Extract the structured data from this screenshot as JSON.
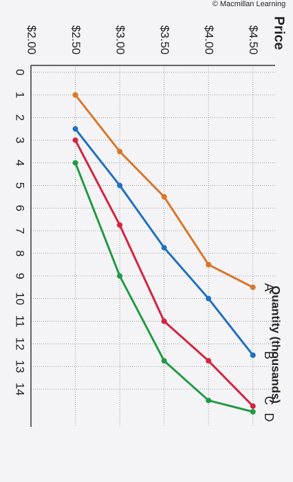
{
  "chart_data": {
    "type": "line",
    "credit": "© Macmillan Learning",
    "y_label": "Price",
    "x_label": "Quantity (thousands)",
    "ylim": [
      2,
      4.75
    ],
    "yticks": [
      {
        "value": 2,
        "label": "$2.00"
      },
      {
        "value": 2.5,
        "label": "$2.50"
      },
      {
        "value": 3,
        "label": "$3.00"
      },
      {
        "value": 3.5,
        "label": "$3.50"
      },
      {
        "value": 4,
        "label": "$4.00"
      },
      {
        "value": 4.5,
        "label": "$4.50"
      }
    ],
    "xlim": [
      0,
      15
    ],
    "xticks": [
      0,
      1,
      2,
      3,
      4,
      5,
      6,
      7,
      8,
      9,
      10,
      11,
      12,
      13,
      14
    ],
    "grid": true,
    "series": [
      {
        "name": "A",
        "color": "#d9762a",
        "x": [
          1,
          3.5,
          5.5,
          8.5,
          9.5
        ],
        "values": [
          2.5,
          3,
          3.5,
          4,
          4.5
        ]
      },
      {
        "name": "B",
        "color": "#1f6fc0",
        "x": [
          2.5,
          5,
          7.75,
          10,
          12.5
        ],
        "values": [
          2.5,
          3,
          3.5,
          4,
          4.5
        ]
      },
      {
        "name": "C",
        "color": "#d4223f",
        "x": [
          3,
          6.75,
          11,
          12.75,
          14.75
        ],
        "values": [
          2.5,
          3,
          3.5,
          4,
          4.5
        ]
      },
      {
        "name": "D",
        "color": "#1f9a45",
        "x": [
          4,
          9,
          12.75,
          14.5,
          15
        ],
        "values": [
          2.5,
          3,
          3.5,
          4,
          4.5
        ]
      }
    ]
  }
}
